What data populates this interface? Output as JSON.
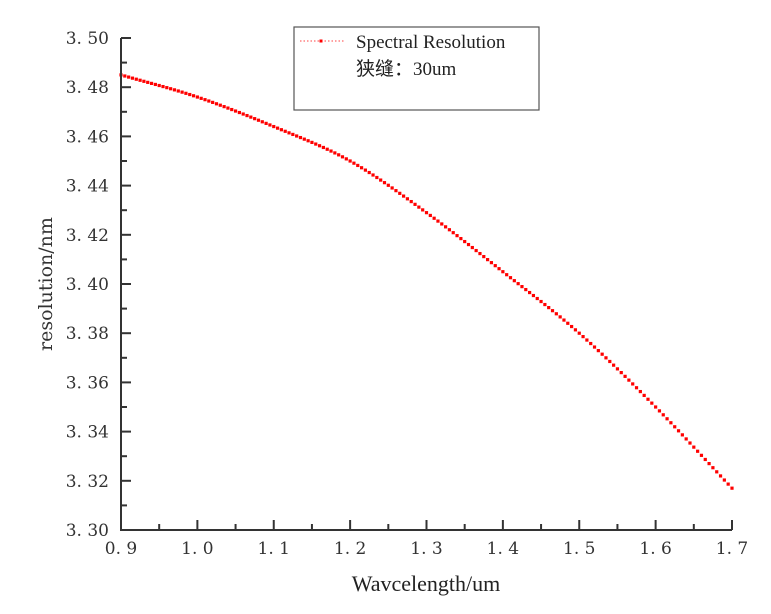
{
  "chart_data": {
    "type": "scatter",
    "title": "",
    "xlabel": "Wavcelength/um",
    "ylabel": "resolution/nm",
    "xlim": [
      0.9,
      1.7
    ],
    "ylim": [
      3.3,
      3.5
    ],
    "xticks": [
      0.9,
      1.0,
      1.1,
      1.2,
      1.3,
      1.4,
      1.5,
      1.6,
      1.7
    ],
    "xtick_labels": [
      "0.9",
      "1.0",
      "1.1",
      "1.2",
      "1.3",
      "1.4",
      "1.5",
      "1.6",
      "1.7"
    ],
    "yticks": [
      3.3,
      3.32,
      3.34,
      3.36,
      3.38,
      3.4,
      3.42,
      3.44,
      3.46,
      3.48,
      3.5
    ],
    "ytick_labels": [
      "3.30",
      "3.32",
      "3.34",
      "3.36",
      "3.38",
      "3.40",
      "3.42",
      "3.44",
      "3.46",
      "3.48",
      "3.50"
    ],
    "grid": false,
    "legend": {
      "position": "top-center",
      "entries": [
        "Spectral Resolution",
        "狭缝：30um"
      ]
    },
    "series": [
      {
        "name": "Spectral Resolution",
        "color": "#ff0000",
        "marker": "square-dot",
        "line_style": "dotted",
        "x": [
          0.9,
          1.0,
          1.1,
          1.2,
          1.3,
          1.4,
          1.5,
          1.6,
          1.7
        ],
        "y": [
          3.485,
          3.476,
          3.464,
          3.45,
          3.429,
          3.405,
          3.38,
          3.35,
          3.317
        ]
      }
    ]
  }
}
